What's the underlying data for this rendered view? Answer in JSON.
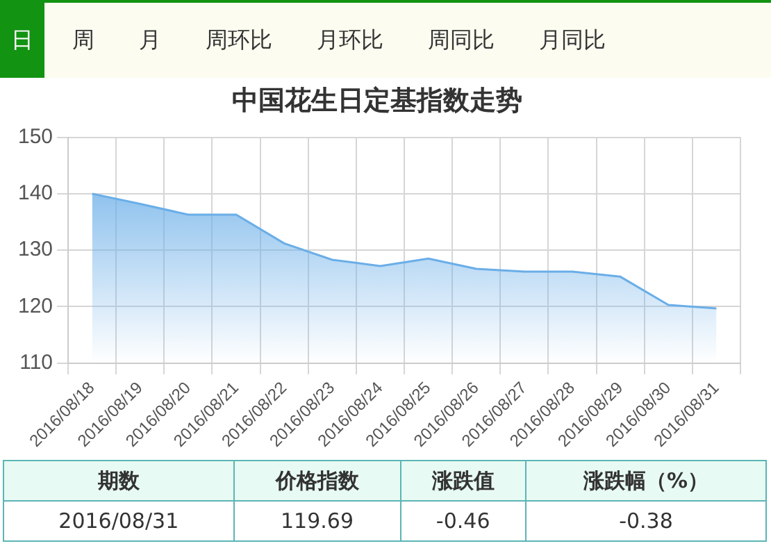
{
  "chart_data": {
    "type": "area",
    "title": "中国花生日定基指数走势",
    "categories": [
      "2016/08/18",
      "2016/08/19",
      "2016/08/20",
      "2016/08/21",
      "2016/08/22",
      "2016/08/23",
      "2016/08/24",
      "2016/08/25",
      "2016/08/26",
      "2016/08/27",
      "2016/08/28",
      "2016/08/29",
      "2016/08/30",
      "2016/08/31"
    ],
    "series": [
      {
        "color": "#6aaee8",
        "values": [
          140,
          138.2,
          136.3,
          136.3,
          131.2,
          128.3,
          127.2,
          128.5,
          126.7,
          126.2,
          126.2,
          125.3,
          120.3,
          119.69
        ]
      }
    ],
    "ylim": [
      110,
      150
    ],
    "yticks": [
      110,
      120,
      130,
      140,
      150
    ],
    "grid": true,
    "legend": false,
    "marker": "none",
    "annotations": [
      "日",
      "周",
      "月",
      "周环比",
      "月环比",
      "周同比",
      "月同比",
      "期数",
      "价格指数",
      "涨跌值",
      "涨跌幅（%）",
      "2016/08/31",
      "119.69",
      "-0.46",
      "-0.38"
    ]
  }
}
